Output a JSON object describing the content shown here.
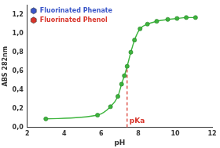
{
  "chart_data": {
    "type": "scatter",
    "x_label": "pH",
    "y_label": "ABS 282nm",
    "x": [
      3.0,
      5.8,
      6.5,
      6.9,
      7.1,
      7.25,
      7.4,
      7.6,
      7.8,
      8.1,
      8.5,
      9.0,
      9.6,
      10.1,
      10.6,
      11.1
    ],
    "values": [
      0.09,
      0.13,
      0.22,
      0.33,
      0.46,
      0.55,
      0.65,
      0.8,
      0.93,
      1.05,
      1.1,
      1.13,
      1.15,
      1.16,
      1.17,
      1.17
    ],
    "color": "#3cb43c",
    "marker": "circle",
    "line_style": "solid",
    "xlim": [
      2,
      12
    ],
    "xticks": [
      2,
      4,
      6,
      8,
      10,
      12
    ],
    "ylim": [
      0,
      1.3
    ],
    "yticks": [
      {
        "value": 0,
        "label": "0,0"
      },
      {
        "value": 0.2,
        "label": "0,2"
      },
      {
        "value": 0.4,
        "label": "0,4"
      },
      {
        "value": 0.6,
        "label": "0,6"
      },
      {
        "value": 0.8,
        "label": "0,8"
      },
      {
        "value": 1.0,
        "label": "1,0"
      },
      {
        "value": 1.2,
        "label": "1,2"
      }
    ],
    "grid": false,
    "legend": "top-left",
    "legend_items": [
      {
        "name": "Fluorinated Phenate",
        "color": "#3a56c8"
      },
      {
        "name": "Fluorinated Phenol",
        "color": "#d8342a"
      }
    ],
    "annotations": [
      {
        "text": "pKa",
        "x": 7.4,
        "y": 0.65,
        "color": "#d8342a",
        "line_style": "dashed"
      }
    ]
  }
}
